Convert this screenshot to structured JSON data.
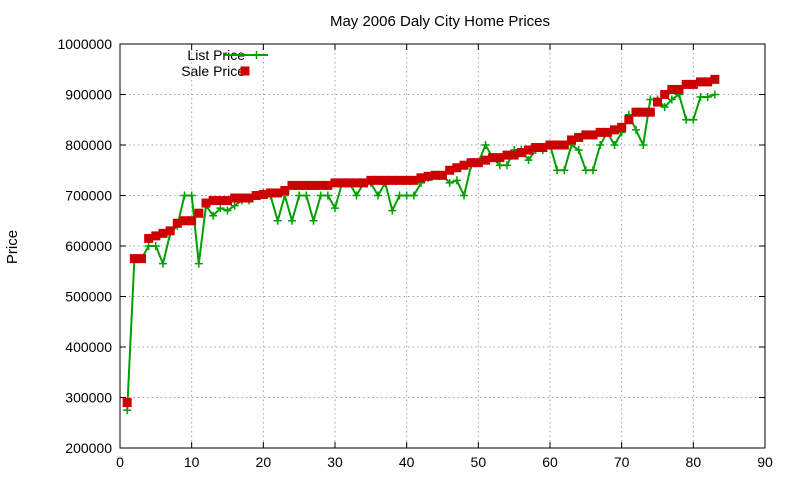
{
  "chart_data": {
    "type": "line",
    "title": "May 2006 Daly City Home Prices",
    "xlabel": "",
    "ylabel": "Price",
    "xlim": [
      0,
      90
    ],
    "ylim": [
      200000,
      1000000
    ],
    "xticks": [
      0,
      10,
      20,
      30,
      40,
      50,
      60,
      70,
      80,
      90
    ],
    "yticks": [
      200000,
      300000,
      400000,
      500000,
      600000,
      700000,
      800000,
      900000,
      1000000
    ],
    "grid": true,
    "legend_position": "top-left",
    "series": [
      {
        "name": "List Price",
        "style": "line-with-plus-markers",
        "color": "#00a000",
        "x": [
          1,
          2,
          3,
          4,
          5,
          6,
          7,
          8,
          9,
          10,
          11,
          12,
          13,
          14,
          15,
          16,
          17,
          18,
          19,
          20,
          21,
          22,
          23,
          24,
          25,
          26,
          27,
          28,
          29,
          30,
          31,
          32,
          33,
          34,
          35,
          36,
          37,
          38,
          39,
          40,
          41,
          42,
          43,
          44,
          45,
          46,
          47,
          48,
          49,
          50,
          51,
          52,
          53,
          54,
          55,
          56,
          57,
          58,
          59,
          60,
          61,
          62,
          63,
          64,
          65,
          66,
          67,
          68,
          69,
          70,
          71,
          72,
          73,
          74,
          75,
          76,
          77,
          78,
          79,
          80,
          81,
          82,
          83
        ],
        "y": [
          275000,
          570000,
          575000,
          600000,
          600000,
          565000,
          625000,
          640000,
          700000,
          700000,
          565000,
          680000,
          660000,
          675000,
          670000,
          680000,
          690000,
          690000,
          700000,
          705000,
          700000,
          650000,
          700000,
          650000,
          700000,
          700000,
          650000,
          700000,
          700000,
          675000,
          725000,
          725000,
          700000,
          725000,
          725000,
          700000,
          725000,
          670000,
          700000,
          700000,
          700000,
          725000,
          735000,
          740000,
          740000,
          725000,
          730000,
          700000,
          760000,
          765000,
          800000,
          775000,
          760000,
          760000,
          790000,
          790000,
          770000,
          790000,
          790000,
          800000,
          750000,
          750000,
          800000,
          790000,
          750000,
          750000,
          800000,
          825000,
          800000,
          825000,
          860000,
          830000,
          800000,
          890000,
          890000,
          875000,
          890000,
          900000,
          850000,
          850000,
          895000,
          895000,
          900000
        ]
      },
      {
        "name": "Sale Price",
        "style": "square-markers",
        "color": "#cc0000",
        "x": [
          1,
          2,
          3,
          4,
          5,
          6,
          7,
          8,
          9,
          10,
          11,
          12,
          13,
          14,
          15,
          16,
          17,
          18,
          19,
          20,
          21,
          22,
          23,
          24,
          25,
          26,
          27,
          28,
          29,
          30,
          31,
          32,
          33,
          34,
          35,
          36,
          37,
          38,
          39,
          40,
          41,
          42,
          43,
          44,
          45,
          46,
          47,
          48,
          49,
          50,
          51,
          52,
          53,
          54,
          55,
          56,
          57,
          58,
          59,
          60,
          61,
          62,
          63,
          64,
          65,
          66,
          67,
          68,
          69,
          70,
          71,
          72,
          73,
          74,
          75,
          76,
          77,
          78,
          79,
          80,
          81,
          82,
          83
        ],
        "y": [
          290000,
          575000,
          575000,
          615000,
          620000,
          625000,
          630000,
          645000,
          650000,
          650000,
          665000,
          685000,
          690000,
          690000,
          690000,
          695000,
          695000,
          695000,
          700000,
          702000,
          705000,
          705000,
          710000,
          720000,
          720000,
          720000,
          720000,
          720000,
          720000,
          725000,
          725000,
          725000,
          725000,
          725000,
          730000,
          730000,
          730000,
          730000,
          730000,
          730000,
          730000,
          735000,
          738000,
          740000,
          740000,
          750000,
          755000,
          760000,
          765000,
          765000,
          770000,
          775000,
          775000,
          780000,
          780000,
          785000,
          790000,
          795000,
          795000,
          800000,
          800000,
          800000,
          810000,
          815000,
          820000,
          820000,
          825000,
          825000,
          830000,
          835000,
          850000,
          865000,
          865000,
          865000,
          885000,
          900000,
          910000,
          910000,
          920000,
          920000,
          925000,
          925000,
          930000
        ]
      }
    ]
  }
}
